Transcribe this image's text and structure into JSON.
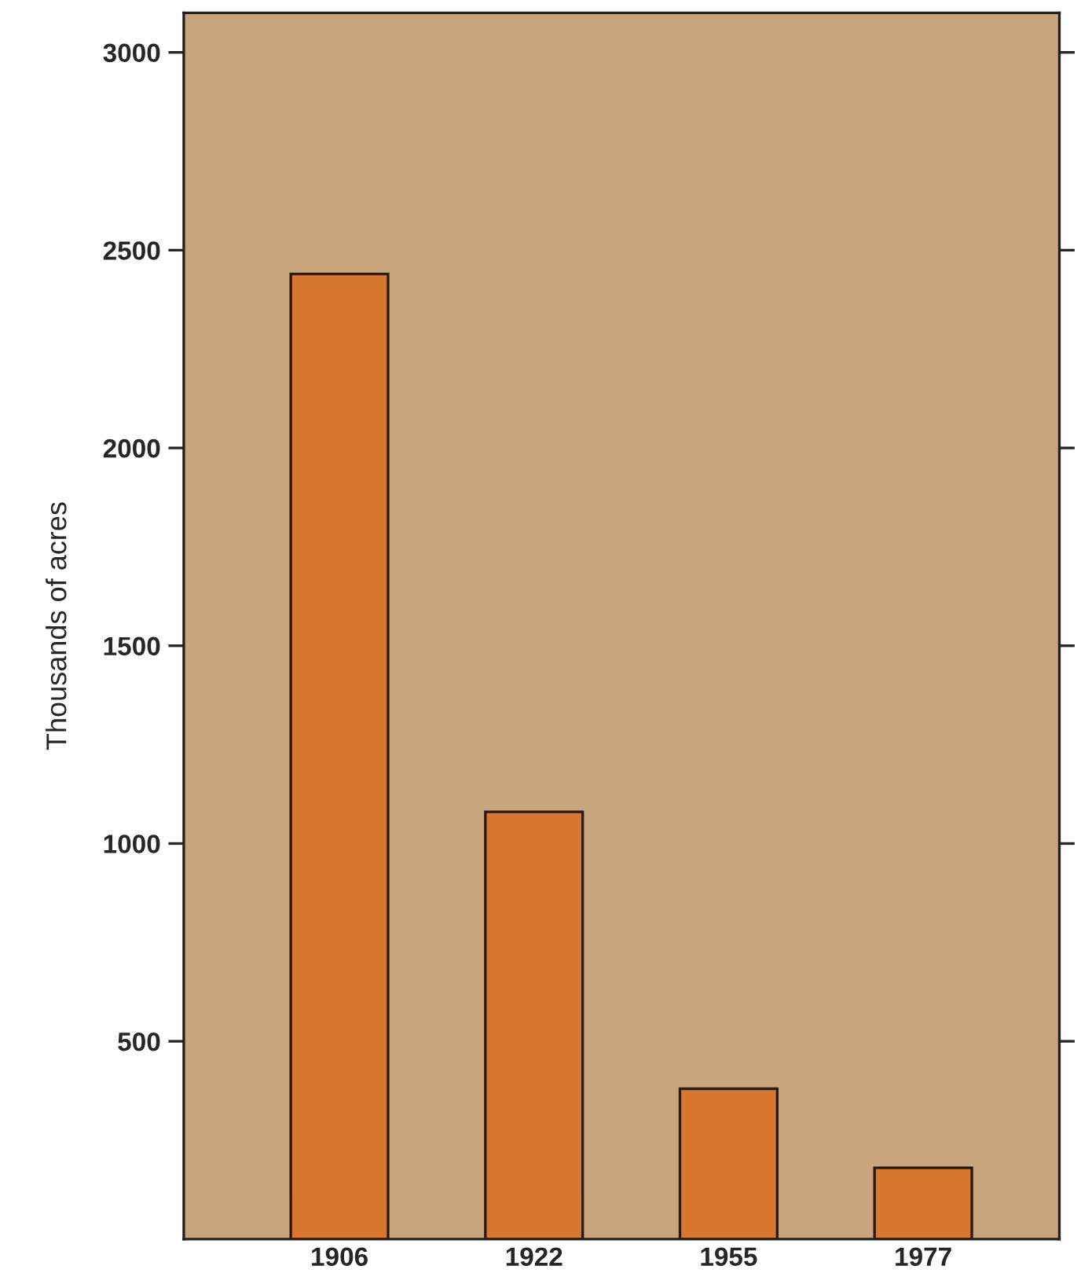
{
  "chart_data": {
    "type": "bar",
    "ylabel": "Thousands of acres",
    "categories": [
      "1906",
      "1922",
      "1955",
      "1977"
    ],
    "values": [
      2440,
      1080,
      380,
      180
    ],
    "color": "#d9772f",
    "ylim": [
      0,
      3100
    ],
    "yticks": [
      500,
      1000,
      1500,
      2000,
      2500,
      3000
    ],
    "grid": false,
    "legend": false
  }
}
